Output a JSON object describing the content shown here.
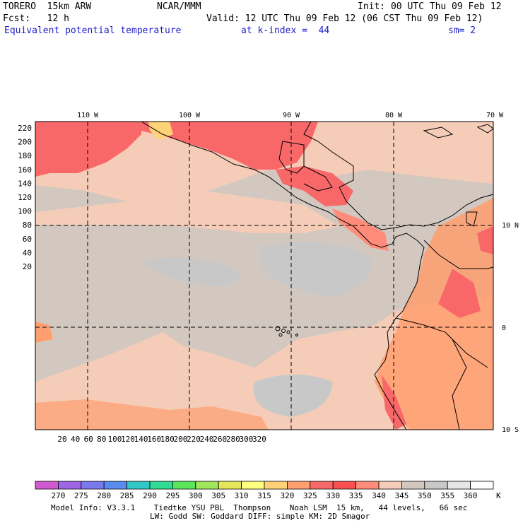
{
  "header": {
    "model": "TORERO  15km ARW",
    "center": "NCAR/MMM",
    "init": "Init: 00 UTC Thu 09 Feb 12",
    "fcst": "Fcst:   12 h",
    "valid": "Valid: 12 UTC Thu 09 Feb 12 (06 CST Thu 09 Feb 12)",
    "field": "Equivalent potential temperature",
    "level": "at k-index =  44",
    "smooth": "sm= 2"
  },
  "axes": {
    "top_lon_labels": [
      "110 W",
      "100 W",
      "90 W",
      "80 W",
      "70 W"
    ],
    "right_lat_labels": [
      "10 N",
      "0",
      "10 S"
    ],
    "left_grid_labels": [
      "220",
      "200",
      "180",
      "160",
      "140",
      "120",
      "100",
      "80",
      "60",
      "40",
      "20"
    ],
    "bottom_grid_labels": [
      "20",
      "40",
      "60",
      "80",
      "100",
      "120",
      "140",
      "160",
      "180",
      "200",
      "220",
      "240",
      "260",
      "280",
      "300",
      "320"
    ]
  },
  "legend": {
    "unit": "K",
    "levels": [
      "270",
      "275",
      "280",
      "285",
      "290",
      "295",
      "300",
      "305",
      "310",
      "315",
      "320",
      "325",
      "330",
      "335",
      "340",
      "345",
      "350",
      "355",
      "360"
    ],
    "colors": [
      "#d15ad1",
      "#a064e6",
      "#7a7aee",
      "#5a8cf0",
      "#33c8c8",
      "#2edc96",
      "#5ae65a",
      "#a0e65a",
      "#e6e65a",
      "#ffff80",
      "#ffd278",
      "#ff9e6e",
      "#f86868",
      "#fa5050",
      "#ff8c7a",
      "#f5ccb8",
      "#d2c8c0",
      "#c8c8c8",
      "#e6e6e6",
      "#ffffff"
    ]
  },
  "footer": {
    "line1": "Model Info: V3.3.1    Tiedtke YSU PBL  Thompson    Noah LSM  15 km,   44 levels,   66 sec",
    "line2": "LW: Godd SW: Goddard DIFF: simple KM: 2D Smagor"
  }
}
